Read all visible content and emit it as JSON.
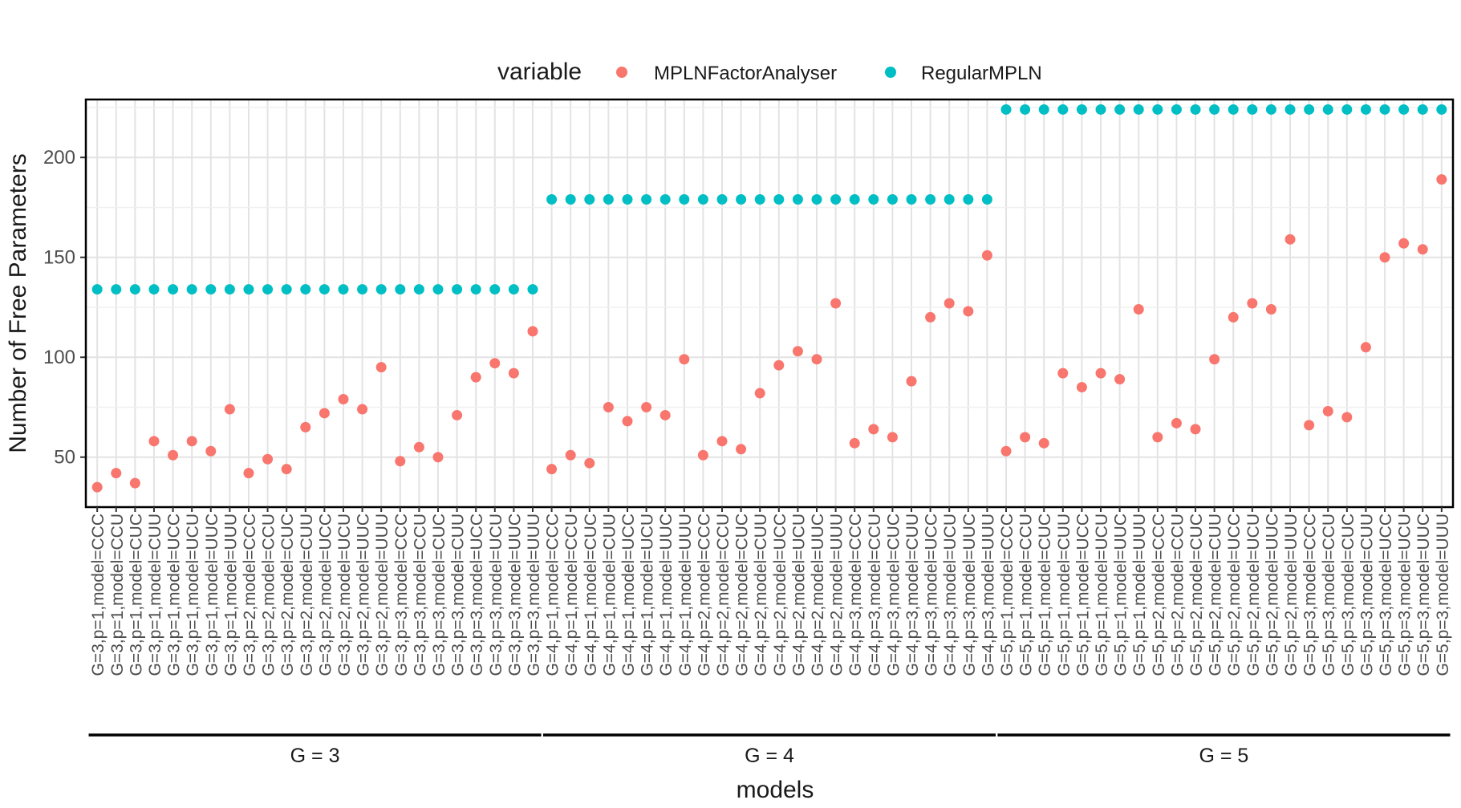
{
  "chart_data": {
    "type": "scatter",
    "title": "",
    "xlabel": "models",
    "ylabel": "Number of Free Parameters",
    "ylim": [
      25,
      229
    ],
    "yticks": [
      50,
      100,
      150,
      200
    ],
    "grid": true,
    "legend": {
      "title": "variable",
      "placement": "top",
      "entries": [
        "MPLNFactorAnalyser",
        "RegularMPLN"
      ]
    },
    "groups": [
      {
        "label": "G = 3",
        "start": 0,
        "end": 23
      },
      {
        "label": "G = 4",
        "start": 24,
        "end": 47
      },
      {
        "label": "G = 5",
        "start": 48,
        "end": 71
      }
    ],
    "categories": [
      "G=3,p=1,model=CCC",
      "G=3,p=1,model=CCU",
      "G=3,p=1,model=CUC",
      "G=3,p=1,model=CUU",
      "G=3,p=1,model=UCC",
      "G=3,p=1,model=UCU",
      "G=3,p=1,model=UUC",
      "G=3,p=1,model=UUU",
      "G=3,p=2,model=CCC",
      "G=3,p=2,model=CCU",
      "G=3,p=2,model=CUC",
      "G=3,p=2,model=CUU",
      "G=3,p=2,model=UCC",
      "G=3,p=2,model=UCU",
      "G=3,p=2,model=UUC",
      "G=3,p=2,model=UUU",
      "G=3,p=3,model=CCC",
      "G=3,p=3,model=CCU",
      "G=3,p=3,model=CUC",
      "G=3,p=3,model=CUU",
      "G=3,p=3,model=UCC",
      "G=3,p=3,model=UCU",
      "G=3,p=3,model=UUC",
      "G=3,p=3,model=UUU",
      "G=4,p=1,model=CCC",
      "G=4,p=1,model=CCU",
      "G=4,p=1,model=CUC",
      "G=4,p=1,model=CUU",
      "G=4,p=1,model=UCC",
      "G=4,p=1,model=UCU",
      "G=4,p=1,model=UUC",
      "G=4,p=1,model=UUU",
      "G=4,p=2,model=CCC",
      "G=4,p=2,model=CCU",
      "G=4,p=2,model=CUC",
      "G=4,p=2,model=CUU",
      "G=4,p=2,model=UCC",
      "G=4,p=2,model=UCU",
      "G=4,p=2,model=UUC",
      "G=4,p=2,model=UUU",
      "G=4,p=3,model=CCC",
      "G=4,p=3,model=CCU",
      "G=4,p=3,model=CUC",
      "G=4,p=3,model=CUU",
      "G=4,p=3,model=UCC",
      "G=4,p=3,model=UCU",
      "G=4,p=3,model=UUC",
      "G=4,p=3,model=UUU",
      "G=5,p=1,model=CCC",
      "G=5,p=1,model=CCU",
      "G=5,p=1,model=CUC",
      "G=5,p=1,model=CUU",
      "G=5,p=1,model=UCC",
      "G=5,p=1,model=UCU",
      "G=5,p=1,model=UUC",
      "G=5,p=1,model=UUU",
      "G=5,p=2,model=CCC",
      "G=5,p=2,model=CCU",
      "G=5,p=2,model=CUC",
      "G=5,p=2,model=CUU",
      "G=5,p=2,model=UCC",
      "G=5,p=2,model=UCU",
      "G=5,p=2,model=UUC",
      "G=5,p=2,model=UUU",
      "G=5,p=3,model=CCC",
      "G=5,p=3,model=CCU",
      "G=5,p=3,model=CUC",
      "G=5,p=3,model=CUU",
      "G=5,p=3,model=UCC",
      "G=5,p=3,model=UCU",
      "G=5,p=3,model=UUC",
      "G=5,p=3,model=UUU"
    ],
    "series": [
      {
        "name": "MPLNFactorAnalyser",
        "color": "#F8766D",
        "values": [
          35,
          42,
          37,
          58,
          51,
          58,
          53,
          74,
          42,
          49,
          44,
          65,
          72,
          79,
          74,
          95,
          48,
          55,
          50,
          71,
          90,
          97,
          92,
          113,
          44,
          51,
          47,
          75,
          68,
          75,
          71,
          99,
          51,
          58,
          54,
          82,
          96,
          103,
          99,
          127,
          57,
          64,
          60,
          88,
          120,
          127,
          123,
          151,
          53,
          60,
          57,
          92,
          85,
          92,
          89,
          124,
          60,
          67,
          64,
          99,
          120,
          127,
          124,
          159,
          66,
          73,
          70,
          105,
          150,
          157,
          154,
          189
        ]
      },
      {
        "name": "RegularMPLN",
        "color": "#00BFC4",
        "values": [
          134,
          134,
          134,
          134,
          134,
          134,
          134,
          134,
          134,
          134,
          134,
          134,
          134,
          134,
          134,
          134,
          134,
          134,
          134,
          134,
          134,
          134,
          134,
          134,
          179,
          179,
          179,
          179,
          179,
          179,
          179,
          179,
          179,
          179,
          179,
          179,
          179,
          179,
          179,
          179,
          179,
          179,
          179,
          179,
          179,
          179,
          179,
          179,
          224,
          224,
          224,
          224,
          224,
          224,
          224,
          224,
          224,
          224,
          224,
          224,
          224,
          224,
          224,
          224,
          224,
          224,
          224,
          224,
          224,
          224,
          224,
          224
        ]
      }
    ]
  }
}
